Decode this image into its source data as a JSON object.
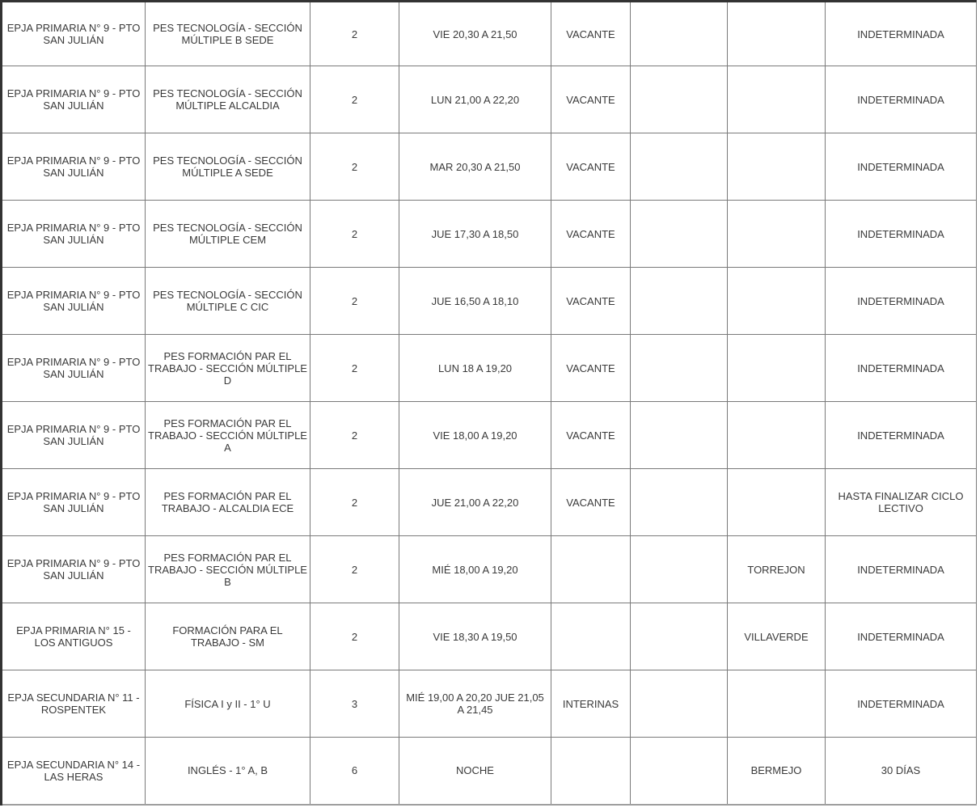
{
  "colors": {
    "grid": "#7a7a7a",
    "outer_dark": "#333333",
    "outer_bottom": "#9e9e9e",
    "text": "#3a3a3a",
    "background": "#ffffff"
  },
  "table": {
    "rows": [
      [
        "EPJA PRIMARIA N° 9 - PTO SAN JULIÁN",
        "PES TECNOLOGÍA - SECCIÓN MÚLTIPLE B SEDE",
        "2",
        "VIE 20,30 A 21,50",
        "VACANTE",
        "",
        "",
        "INDETERMINADA"
      ],
      [
        "EPJA PRIMARIA N° 9 - PTO SAN JULIÁN",
        "PES TECNOLOGÍA - SECCIÓN MÚLTIPLE ALCALDIA",
        "2",
        "LUN 21,00 A 22,20",
        "VACANTE",
        "",
        "",
        "INDETERMINADA"
      ],
      [
        "EPJA PRIMARIA N° 9 - PTO SAN JULIÁN",
        "PES TECNOLOGÍA - SECCIÓN MÚLTIPLE A SEDE",
        "2",
        "MAR 20,30 A 21,50",
        "VACANTE",
        "",
        "",
        "INDETERMINADA"
      ],
      [
        "EPJA PRIMARIA N° 9 - PTO SAN JULIÁN",
        "PES TECNOLOGÍA - SECCIÓN MÚLTIPLE CEM",
        "2",
        "JUE 17,30 A 18,50",
        "VACANTE",
        "",
        "",
        "INDETERMINADA"
      ],
      [
        "EPJA PRIMARIA N° 9 - PTO SAN JULIÁN",
        "PES TECNOLOGÍA - SECCIÓN MÚLTIPLE C CIC",
        "2",
        "JUE 16,50 A 18,10",
        "VACANTE",
        "",
        "",
        "INDETERMINADA"
      ],
      [
        "EPJA PRIMARIA N° 9 - PTO SAN JULIÁN",
        "PES FORMACIÓN PAR EL TRABAJO - SECCIÓN MÚLTIPLE D",
        "2",
        "LUN 18 A 19,20",
        "VACANTE",
        "",
        "",
        "INDETERMINADA"
      ],
      [
        "EPJA PRIMARIA N° 9 - PTO SAN JULIÁN",
        "PES FORMACIÓN PAR EL TRABAJO - SECCIÓN MÚLTIPLE A",
        "2",
        "VIE 18,00 A 19,20",
        "VACANTE",
        "",
        "",
        "INDETERMINADA"
      ],
      [
        "EPJA PRIMARIA N° 9 - PTO SAN JULIÁN",
        "PES FORMACIÓN PAR EL TRABAJO - ALCALDIA ECE",
        "2",
        "JUE 21,00 A 22,20",
        "VACANTE",
        "",
        "",
        "HASTA FINALIZAR CICLO LECTIVO"
      ],
      [
        "EPJA PRIMARIA N° 9 - PTO SAN JULIÁN",
        "PES FORMACIÓN PAR EL TRABAJO - SECCIÓN MÚLTIPLE B",
        "2",
        "MIÉ 18,00 A 19,20",
        "",
        "",
        "TORREJON",
        "INDETERMINADA"
      ],
      [
        "EPJA PRIMARIA N° 15 - LOS ANTIGUOS",
        "FORMACIÓN PARA EL TRABAJO - SM",
        "2",
        "VIE 18,30 A 19,50",
        "",
        "",
        "VILLAVERDE",
        "INDETERMINADA"
      ],
      [
        "EPJA SECUNDARIA N° 11 - ROSPENTEK",
        "FÍSICA I y II - 1° U",
        "3",
        "MIÉ 19,00 A 20,20 JUE 21,05 A 21,45",
        "INTERINAS",
        "",
        "",
        "INDETERMINADA"
      ],
      [
        "EPJA SECUNDARIA N° 14 - LAS HERAS",
        "INGLÉS - 1° A, B",
        "6",
        "NOCHE",
        "",
        "",
        "BERMEJO",
        "30 DÍAS"
      ]
    ]
  }
}
